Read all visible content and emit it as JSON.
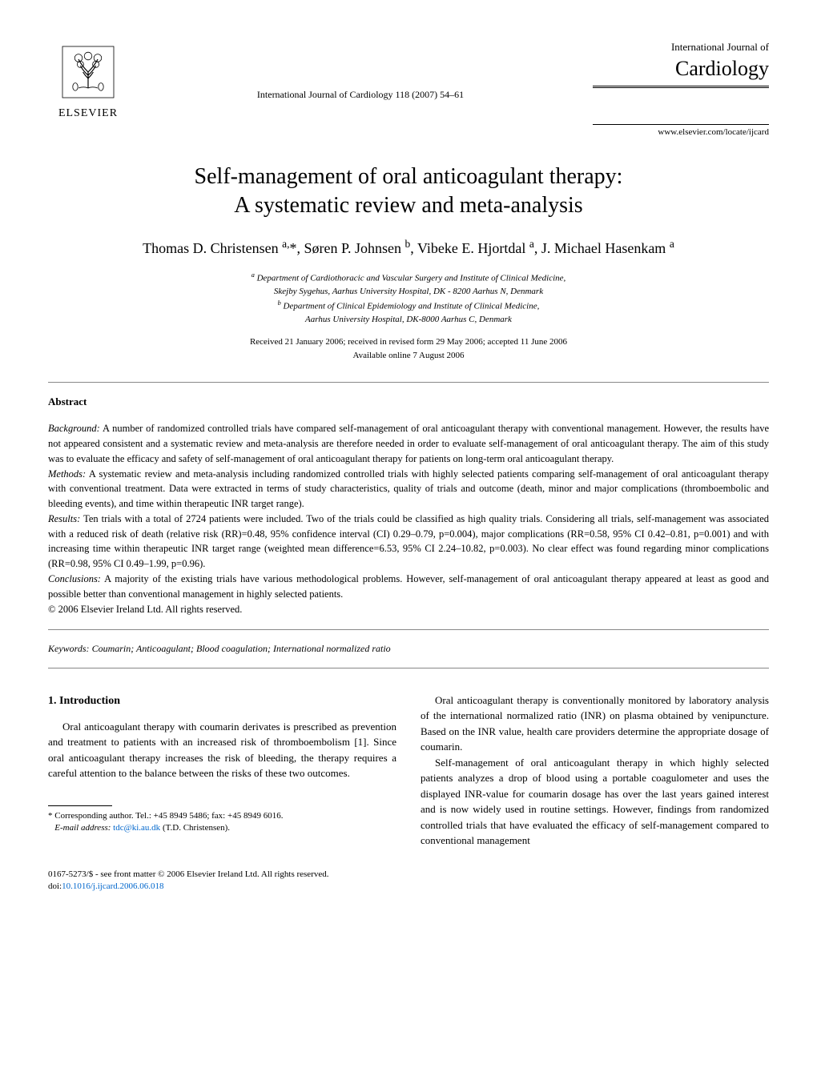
{
  "publisher": {
    "name": "ELSEVIER"
  },
  "journal": {
    "subtitle": "International Journal of",
    "title": "Cardiology",
    "citation": "International Journal of Cardiology 118 (2007) 54–61",
    "url": "www.elsevier.com/locate/ijcard"
  },
  "article": {
    "title_line1": "Self-management of oral anticoagulant therapy:",
    "title_line2": "A systematic review and meta-analysis",
    "authors_html": "Thomas D. Christensen <sup>a,</sup>*, Søren P. Johnsen <sup>b</sup>, Vibeke E. Hjortdal <sup>a</sup>, J. Michael Hasenkam <sup>a</sup>",
    "affiliation_a": "Department of Cardiothoracic and Vascular Surgery and Institute of Clinical Medicine,",
    "affiliation_a2": "Skejby Sygehus, Aarhus University Hospital, DK - 8200 Aarhus N, Denmark",
    "affiliation_b": "Department of Clinical Epidemiology and Institute of Clinical Medicine,",
    "affiliation_b2": "Aarhus University Hospital, DK-8000 Aarhus C, Denmark",
    "dates_line1": "Received 21 January 2006; received in revised form 29 May 2006; accepted 11 June 2006",
    "dates_line2": "Available online 7 August 2006"
  },
  "abstract": {
    "heading": "Abstract",
    "background_label": "Background:",
    "background": "A number of randomized controlled trials have compared self-management of oral anticoagulant therapy with conventional management. However, the results have not appeared consistent and a systematic review and meta-analysis are therefore needed in order to evaluate self-management of oral anticoagulant therapy. The aim of this study was to evaluate the efficacy and safety of self-management of oral anticoagulant therapy for patients on long-term oral anticoagulant therapy.",
    "methods_label": "Methods:",
    "methods": "A systematic review and meta-analysis including randomized controlled trials with highly selected patients comparing self-management of oral anticoagulant therapy with conventional treatment. Data were extracted in terms of study characteristics, quality of trials and outcome (death, minor and major complications (thromboembolic and bleeding events), and time within therapeutic INR target range).",
    "results_label": "Results:",
    "results": "Ten trials with a total of 2724 patients were included. Two of the trials could be classified as high quality trials. Considering all trials, self-management was associated with a reduced risk of death (relative risk (RR)=0.48, 95% confidence interval (CI) 0.29–0.79, p=0.004), major complications (RR=0.58, 95% CI 0.42–0.81, p=0.001) and with increasing time within therapeutic INR target range (weighted mean difference=6.53, 95% CI 2.24–10.82, p=0.003). No clear effect was found regarding minor complications (RR=0.98, 95% CI 0.49–1.99, p=0.96).",
    "conclusions_label": "Conclusions:",
    "conclusions": "A majority of the existing trials have various methodological problems. However, self-management of oral anticoagulant therapy appeared at least as good and possible better than conventional management in highly selected patients.",
    "copyright": "© 2006 Elsevier Ireland Ltd. All rights reserved."
  },
  "keywords": {
    "label": "Keywords:",
    "text": "Coumarin; Anticoagulant; Blood coagulation; International normalized ratio"
  },
  "introduction": {
    "heading": "1. Introduction",
    "p1": "Oral anticoagulant therapy with coumarin derivates is prescribed as prevention and treatment to patients with an increased risk of thromboembolism [1]. Since oral anticoagulant therapy increases the risk of bleeding, the therapy requires a careful attention to the balance between the risks of these two outcomes.",
    "p2": "Oral anticoagulant therapy is conventionally monitored by laboratory analysis of the international normalized ratio (INR) on plasma obtained by venipuncture. Based on the INR value, health care providers determine the appropriate dosage of coumarin.",
    "p3": "Self-management of oral anticoagulant therapy in which highly selected patients analyzes a drop of blood using a portable coagulometer and uses the displayed INR-value for coumarin dosage has over the last years gained interest and is now widely used in routine settings. However, findings from randomized controlled trials that have evaluated the efficacy of self-management compared to conventional management"
  },
  "footnote": {
    "corresponding": "* Corresponding author. Tel.: +45 8949 5486; fax: +45 8949 6016.",
    "email_label": "E-mail address:",
    "email": "tdc@ki.au.dk",
    "email_suffix": "(T.D. Christensen)."
  },
  "footer": {
    "line1": "0167-5273/$ - see front matter © 2006 Elsevier Ireland Ltd. All rights reserved.",
    "line2": "doi:10.1016/j.ijcard.2006.06.018"
  },
  "colors": {
    "text": "#000000",
    "background": "#ffffff",
    "divider": "#888888",
    "link": "#0066cc"
  }
}
